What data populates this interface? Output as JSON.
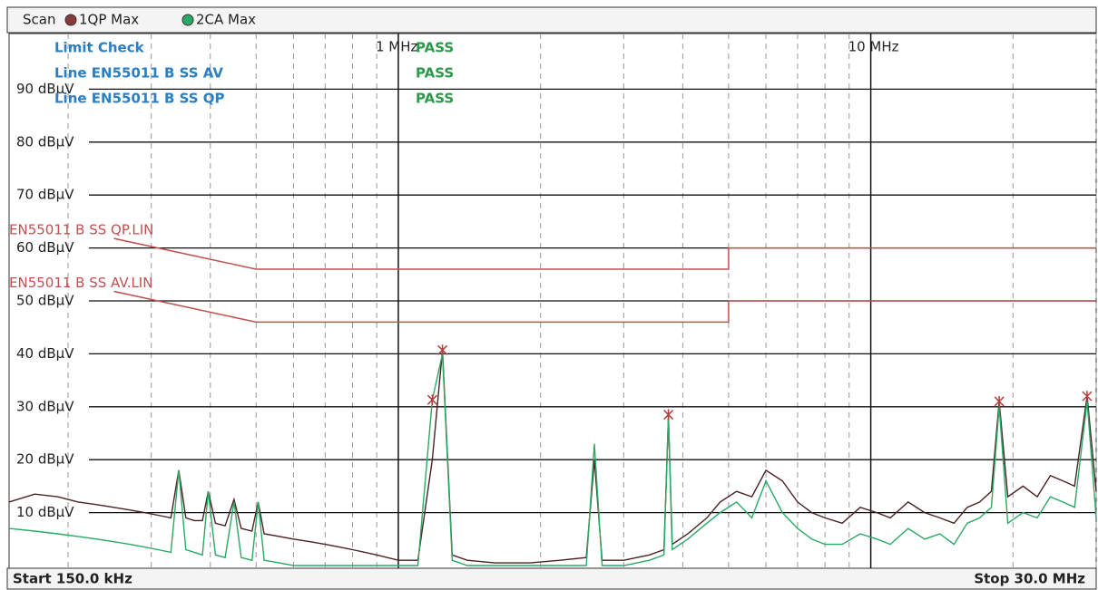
{
  "chart_data": {
    "type": "line",
    "title": "Scan",
    "xscale": "log",
    "xlim": [
      0.15,
      30
    ],
    "ylim": [
      0,
      100
    ],
    "xticks": [
      {
        "value": 1,
        "label": "1 MHz"
      },
      {
        "value": 10,
        "label": "10 MHz"
      }
    ],
    "xminorticks": [
      0.2,
      0.3,
      0.4,
      0.5,
      0.6,
      0.7,
      0.8,
      0.9,
      2,
      3,
      4,
      5,
      6,
      7,
      8,
      9,
      20,
      30
    ],
    "yticks": [
      {
        "value": 10,
        "label": "10 dBµV"
      },
      {
        "value": 20,
        "label": "20 dBµV"
      },
      {
        "value": 30,
        "label": "30 dBµV"
      },
      {
        "value": 40,
        "label": "40 dBµV"
      },
      {
        "value": 50,
        "label": "50 dBµV"
      },
      {
        "value": 60,
        "label": "60 dBµV"
      },
      {
        "value": 70,
        "label": "70 dBµV"
      },
      {
        "value": 80,
        "label": "80 dBµV"
      },
      {
        "value": 90,
        "label": "90 dBµV"
      }
    ],
    "grid": true,
    "x": [
      0.15,
      0.17,
      0.19,
      0.21,
      0.23,
      0.25,
      0.27,
      0.29,
      0.31,
      0.33,
      0.343,
      0.355,
      0.37,
      0.385,
      0.396,
      0.41,
      0.43,
      0.449,
      0.465,
      0.49,
      0.505,
      0.52,
      0.56,
      0.6,
      0.65,
      0.7,
      0.75,
      0.8,
      0.85,
      0.9,
      1.0,
      1.1,
      1.18,
      1.24,
      1.3,
      1.4,
      1.6,
      1.9,
      2.2,
      2.5,
      2.6,
      2.7,
      3.0,
      3.4,
      3.65,
      3.73,
      3.8,
      4.1,
      4.5,
      4.8,
      5.2,
      5.6,
      6.0,
      6.5,
      7.0,
      7.5,
      8.0,
      8.7,
      9.5,
      10.3,
      11,
      12,
      13,
      14,
      15,
      16,
      17,
      18,
      18.7,
      19.5,
      21,
      22.5,
      24,
      25.5,
      27,
      28.7,
      30
    ],
    "series": [
      {
        "name": "1QP Max",
        "color": "#4a2222",
        "values": [
          12,
          13.5,
          13,
          12,
          11.5,
          11,
          10.5,
          10,
          9.5,
          9,
          18,
          9,
          8.5,
          8.5,
          14,
          8,
          7.5,
          12.5,
          7,
          6.5,
          12,
          6,
          5.5,
          5,
          4.5,
          4,
          3.5,
          3,
          2.5,
          2,
          1,
          1,
          20,
          40.7,
          2,
          1,
          0.5,
          0.5,
          1,
          1.5,
          20,
          1,
          1,
          2,
          3,
          28,
          4,
          6,
          9,
          12,
          14,
          13,
          18,
          16,
          12,
          10,
          9,
          8,
          11,
          10,
          9,
          12,
          10,
          9,
          8,
          11,
          12,
          14,
          31,
          13,
          15,
          13,
          17,
          16,
          15,
          32,
          14
        ]
      },
      {
        "name": "2CA Max",
        "color": "#2aa865",
        "values": [
          7,
          6.5,
          6,
          5.5,
          5,
          4.5,
          4,
          3.5,
          3,
          2.5,
          18,
          3,
          2.5,
          2,
          14,
          2,
          1.5,
          12,
          1.5,
          1,
          12,
          1,
          0.5,
          0,
          0,
          0,
          0,
          0,
          0,
          0,
          0,
          0,
          31.3,
          40,
          1,
          0,
          0,
          0,
          0,
          0,
          23,
          0,
          0,
          1,
          2,
          28.5,
          3,
          5,
          8,
          10,
          12,
          9,
          16,
          10,
          7,
          5,
          4,
          4,
          6,
          5,
          4,
          7,
          5,
          6,
          4,
          8,
          9,
          11,
          30,
          8,
          10,
          9,
          13,
          12,
          11,
          31,
          9
        ]
      }
    ],
    "limit_lines": [
      {
        "name": "EN55011 B SS QP.LIN",
        "color": "#c05050",
        "x": [
          0.25,
          0.5,
          5,
          5,
          30
        ],
        "values": [
          61.8,
          56,
          56,
          60,
          60
        ]
      },
      {
        "name": "EN55011 B SS AV.LIN",
        "color": "#c05050",
        "x": [
          0.25,
          0.5,
          5,
          5,
          30
        ],
        "values": [
          51.8,
          46,
          46,
          50,
          50
        ]
      }
    ],
    "markers": {
      "color": "#b04040",
      "x": [
        1.24,
        1.18,
        3.73,
        18.7,
        28.7
      ],
      "values": [
        40.7,
        31.3,
        28.5,
        31,
        32
      ]
    },
    "status": [
      {
        "label": "Limit Check",
        "result": "PASS"
      },
      {
        "label": "Line EN55011 B SS AV",
        "result": "PASS"
      },
      {
        "label": "Line EN55011 B SS QP",
        "result": "PASS"
      }
    ],
    "start_label": "Start 150.0 kHz",
    "stop_label": "Stop 30.0 MHz"
  }
}
